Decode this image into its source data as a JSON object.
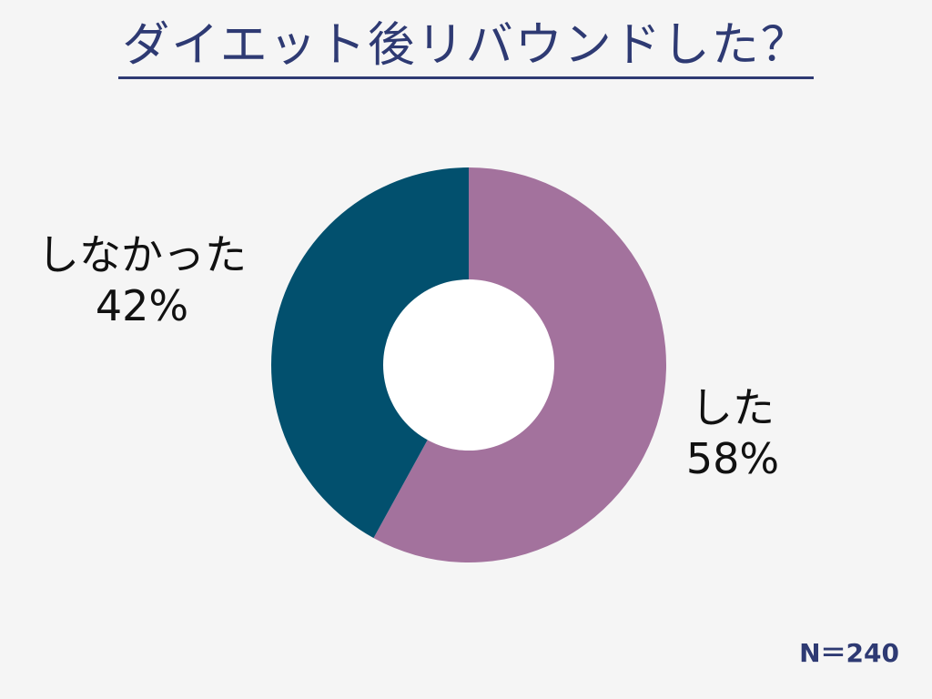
{
  "title": "ダイエット後リバウンドした？",
  "sample_note": "N＝240",
  "chart_data": {
    "type": "pie",
    "variant": "donut",
    "categories": [
      "した",
      "しなかった"
    ],
    "values": [
      58,
      42
    ],
    "value_labels": [
      "58%",
      "42%"
    ],
    "colors": [
      "#a3729d",
      "#02506e"
    ],
    "hole_color": "#ffffff"
  }
}
